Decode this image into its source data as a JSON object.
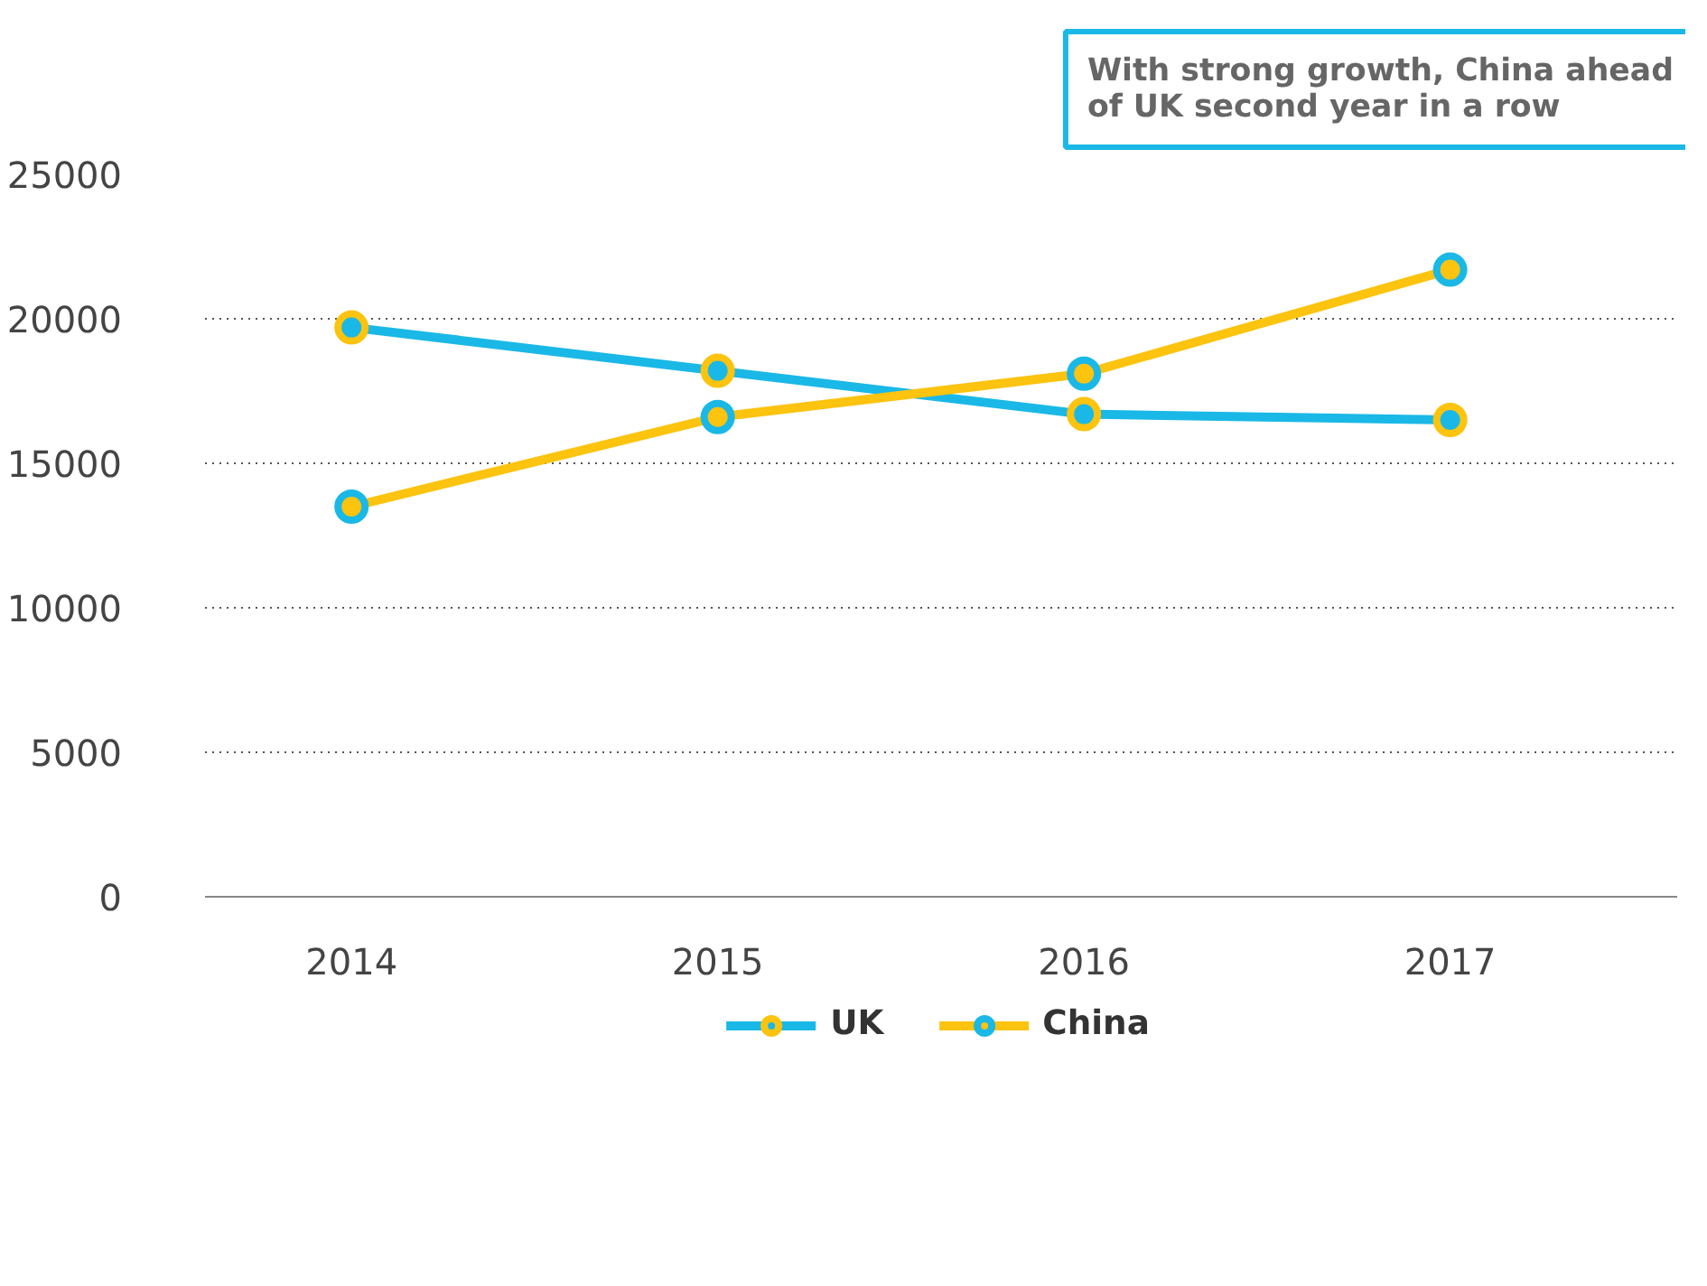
{
  "chart_data": {
    "type": "line",
    "categories": [
      "2014",
      "2015",
      "2016",
      "2017"
    ],
    "series": [
      {
        "name": "UK",
        "color": "#1ab8e6",
        "values": [
          19700,
          18200,
          16700,
          16500
        ]
      },
      {
        "name": "China",
        "color": "#fcc30f",
        "values": [
          13500,
          16600,
          18100,
          21700
        ]
      }
    ],
    "ylim": [
      0,
      25000
    ],
    "yticks": [
      0,
      5000,
      10000,
      15000,
      20000,
      25000
    ],
    "grid": "y",
    "legend": "bottom",
    "marker": "circle",
    "line_style": "solid",
    "annotations": [
      "With strong growth, China ahead of UK second year in a row"
    ]
  }
}
